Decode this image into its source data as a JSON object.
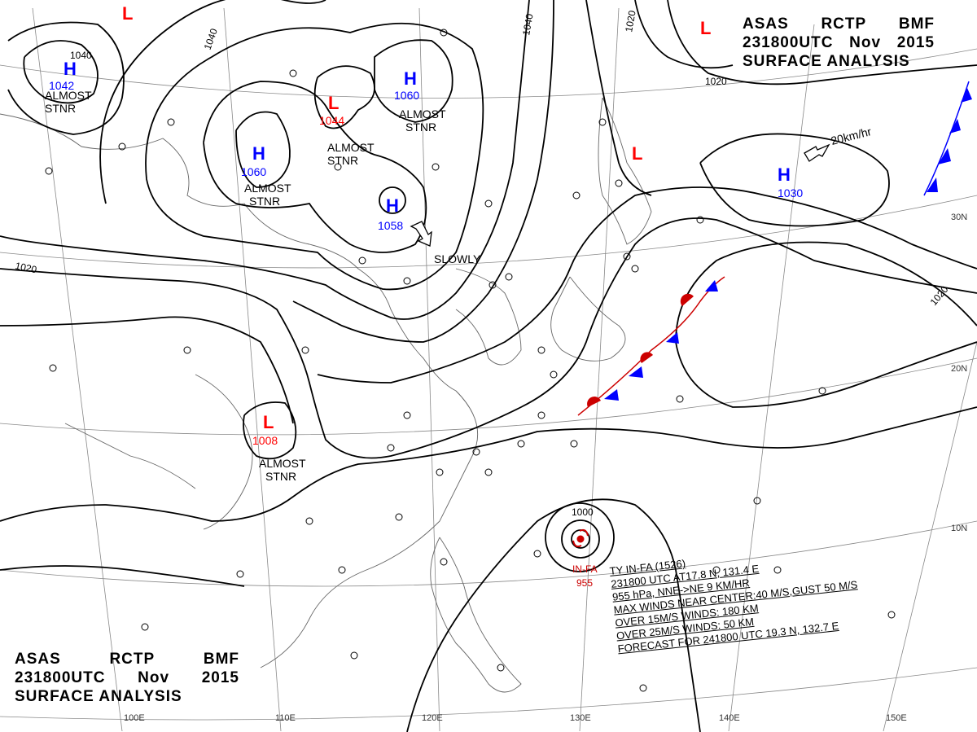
{
  "header": {
    "line1": [
      "ASAS",
      "RCTP",
      "BMF"
    ],
    "line2": [
      "231800UTC",
      "Nov",
      "2015"
    ],
    "line3": "SURFACE  ANALYSIS"
  },
  "pressure_systems": [
    {
      "type": "L",
      "value": ""
    },
    {
      "type": "H",
      "value": "1042"
    },
    {
      "type": "L",
      "value": "1044"
    },
    {
      "type": "H",
      "value": "1060"
    },
    {
      "type": "H",
      "value": "1060"
    },
    {
      "type": "H",
      "value": "1058"
    },
    {
      "type": "L",
      "value": "1008"
    },
    {
      "type": "L",
      "value": ""
    },
    {
      "type": "L",
      "value": ""
    },
    {
      "type": "H",
      "value": "1030"
    }
  ],
  "labels": {
    "almost_stnr": "ALMOST\nSTNR",
    "slowly": "SLOWLY",
    "speed": "20km/hr",
    "isobar_1040": "1040",
    "isobar_1020": "1020",
    "isobar_1000": "1000"
  },
  "typhoon": {
    "name": "IN-FA",
    "pressure": "955",
    "info": [
      "TY  IN-FA  (1526)",
      "231800 UTC  AT17.8 N, 131.4 E",
      "955 hPa, NNE->NE  9 KM/HR",
      "MAX WINDS NEAR CENTER:40 M/S,GUST 50 M/S",
      "OVER 15M/S WINDS: 180 KM",
      "OVER 25M/S WINDS: 50 KM",
      "FORECAST FOR 241800 UTC 19.3 N, 132.7 E"
    ]
  },
  "grid_labels": {
    "longitudes": [
      "100E",
      "110E",
      "120E",
      "130E",
      "140E",
      "150E"
    ],
    "latitudes": [
      "30N",
      "20N",
      "10N"
    ]
  },
  "colors": {
    "high": "#0000ff",
    "low": "#ff0000",
    "isobar": "#000000",
    "coast": "#555555",
    "grid": "#777777",
    "warm_front": "#ff0000",
    "cold_front": "#0000ff"
  }
}
